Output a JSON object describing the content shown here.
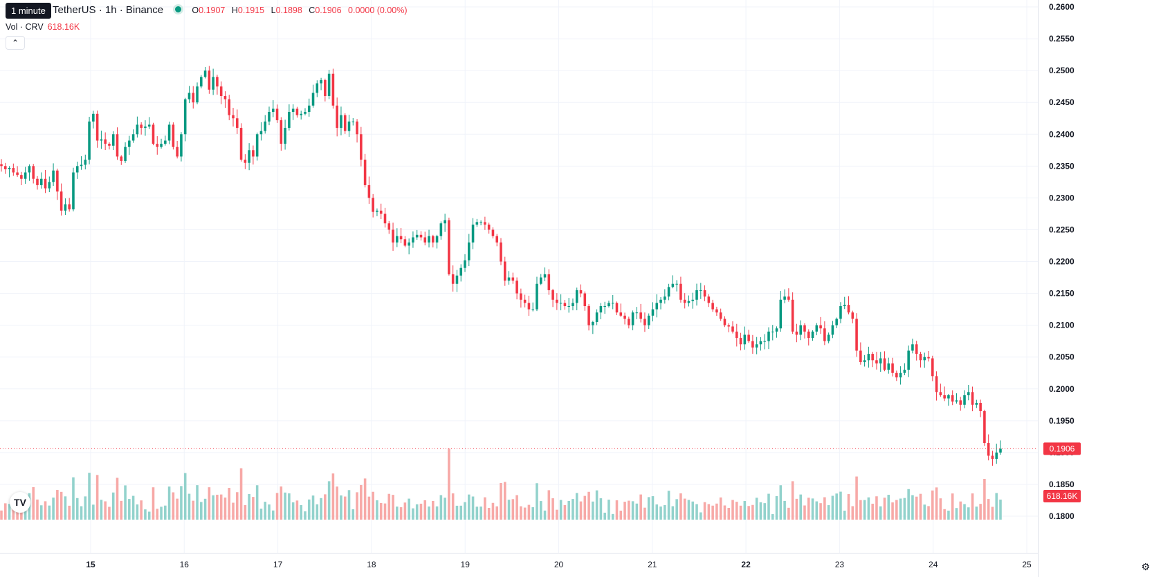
{
  "header": {
    "tooltip": "1 minute",
    "symbol": "TetherUS · 1h · Binance",
    "ohlc": {
      "o_label": "O",
      "o": "0.1907",
      "h_label": "H",
      "h": "0.1915",
      "l_label": "L",
      "l": "0.1898",
      "c_label": "C",
      "c": "0.1906",
      "change": "0.0000 (0.00%)"
    },
    "volume": {
      "label": "Vol · CRV",
      "value": "618.16K"
    },
    "collapse_icon": "chevron-up-icon",
    "logo": "tradingview-logo",
    "settings_icon": "gear-icon"
  },
  "colors": {
    "up": "#089981",
    "down": "#f23645",
    "up_volume": "#92d2cc",
    "down_volume": "#f7a9a7",
    "grid": "#f0f3fa",
    "price_label_bg": "#f23645"
  },
  "chart_data": {
    "type": "candlestick",
    "x_ticks": [
      {
        "label": "15",
        "bold": true,
        "x": 15.0
      },
      {
        "label": "16",
        "bold": false,
        "x": 16.0
      },
      {
        "label": "17",
        "bold": false,
        "x": 17.0
      },
      {
        "label": "18",
        "bold": false,
        "x": 18.0
      },
      {
        "label": "19",
        "bold": false,
        "x": 19.0
      },
      {
        "label": "20",
        "bold": false,
        "x": 20.0
      },
      {
        "label": "21",
        "bold": false,
        "x": 21.0
      },
      {
        "label": "22",
        "bold": true,
        "x": 22.0
      },
      {
        "label": "23",
        "bold": false,
        "x": 23.0
      },
      {
        "label": "24",
        "bold": false,
        "x": 24.0
      },
      {
        "label": "25",
        "bold": false,
        "x": 25.0
      }
    ],
    "y_ticks": [
      "0.2600",
      "0.2550",
      "0.2500",
      "0.2450",
      "0.2400",
      "0.2350",
      "0.2300",
      "0.2250",
      "0.2200",
      "0.2150",
      "0.2100",
      "0.2050",
      "0.2000",
      "0.1950",
      "0.1900",
      "0.1850",
      "0.1800"
    ],
    "ylim": [
      0.18,
      0.26
    ],
    "xlim": [
      14.04,
      25.0
    ],
    "last_price": "0.1906",
    "last_volume": "618.16K",
    "volume_max": 1320000,
    "closes": [
      0.235,
      0.2345,
      0.2347,
      0.234,
      0.2336,
      0.233,
      0.234,
      0.235,
      0.233,
      0.232,
      0.233,
      0.2315,
      0.2325,
      0.2343,
      0.231,
      0.228,
      0.229,
      0.2282,
      0.234,
      0.235,
      0.2352,
      0.236,
      0.242,
      0.2432,
      0.239,
      0.2392,
      0.2385,
      0.2382,
      0.24,
      0.2365,
      0.2358,
      0.238,
      0.239,
      0.24,
      0.2415,
      0.241,
      0.2412,
      0.2415,
      0.2385,
      0.238,
      0.2385,
      0.239,
      0.2415,
      0.238,
      0.2365,
      0.24,
      0.2455,
      0.2465,
      0.245,
      0.2475,
      0.249,
      0.25,
      0.247,
      0.249,
      0.2475,
      0.246,
      0.2455,
      0.243,
      0.2425,
      0.241,
      0.236,
      0.2355,
      0.2375,
      0.2365,
      0.24,
      0.2405,
      0.242,
      0.2435,
      0.244,
      0.2422,
      0.2385,
      0.241,
      0.2435,
      0.244,
      0.243,
      0.2432,
      0.2435,
      0.2445,
      0.2465,
      0.248,
      0.2485,
      0.246,
      0.2495,
      0.2445,
      0.241,
      0.243,
      0.2405,
      0.242,
      0.242,
      0.24,
      0.236,
      0.232,
      0.23,
      0.2278,
      0.228,
      0.2275,
      0.226,
      0.225,
      0.223,
      0.224,
      0.2235,
      0.2225,
      0.223,
      0.2238,
      0.2242,
      0.2238,
      0.223,
      0.224,
      0.223,
      0.224,
      0.226,
      0.2265,
      0.218,
      0.2165,
      0.2178,
      0.219,
      0.2202,
      0.223,
      0.2258,
      0.2262,
      0.2262,
      0.2258,
      0.225,
      0.224,
      0.223,
      0.22,
      0.217,
      0.2175,
      0.217,
      0.215,
      0.214,
      0.2135,
      0.2125,
      0.2125,
      0.2165,
      0.2175,
      0.218,
      0.2155,
      0.214,
      0.2135,
      0.2135,
      0.213,
      0.213,
      0.2135,
      0.2155,
      0.215,
      0.213,
      0.21,
      0.2105,
      0.212,
      0.213,
      0.213,
      0.2135,
      0.2135,
      0.212,
      0.2115,
      0.211,
      0.21,
      0.212,
      0.212,
      0.211,
      0.21,
      0.2115,
      0.2125,
      0.2135,
      0.214,
      0.2145,
      0.216,
      0.2165,
      0.2165,
      0.214,
      0.2135,
      0.2138,
      0.214,
      0.2155,
      0.2155,
      0.2145,
      0.2135,
      0.2125,
      0.212,
      0.211,
      0.21,
      0.2098,
      0.209,
      0.208,
      0.207,
      0.2085,
      0.2075,
      0.2065,
      0.207,
      0.2075,
      0.2075,
      0.209,
      0.209,
      0.2095,
      0.214,
      0.2145,
      0.214,
      0.209,
      0.2085,
      0.21,
      0.209,
      0.208,
      0.209,
      0.21,
      0.2095,
      0.2075,
      0.2085,
      0.21,
      0.211,
      0.213,
      0.2132,
      0.212,
      0.211,
      0.206,
      0.2042,
      0.2045,
      0.2055,
      0.2045,
      0.204,
      0.2048,
      0.203,
      0.204,
      0.2025,
      0.2018,
      0.2025,
      0.203,
      0.206,
      0.207,
      0.2055,
      0.2045,
      0.205,
      0.2048,
      0.202,
      0.1995,
      0.199,
      0.1985,
      0.199,
      0.198,
      0.1982,
      0.1975,
      0.199,
      0.1995,
      0.1975,
      0.1978,
      0.1965,
      0.1915,
      0.1895,
      0.189,
      0.19,
      0.1906
    ],
    "ohlc_note": "hourly candles; open equals previous close"
  }
}
